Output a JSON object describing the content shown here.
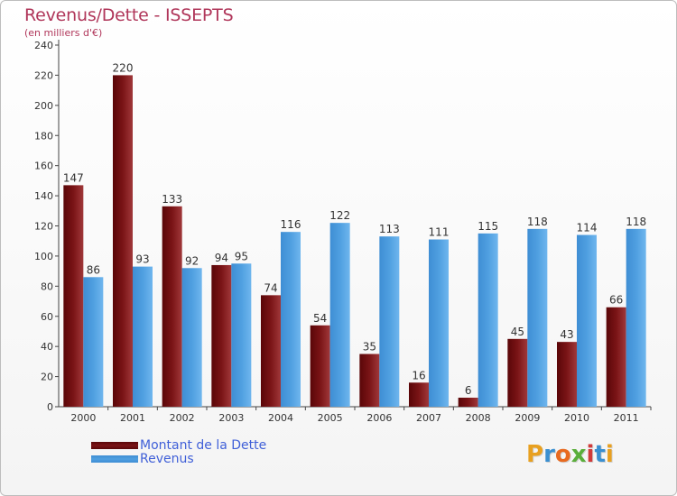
{
  "chart_data": {
    "type": "bar",
    "title": "Revenus/Dette - ISSEPTS",
    "subtitle": "(en milliers d'€)",
    "categories": [
      "2000",
      "2001",
      "2002",
      "2003",
      "2004",
      "2005",
      "2006",
      "2007",
      "2008",
      "2009",
      "2010",
      "2011"
    ],
    "series": [
      {
        "name": "Montant de la Dette",
        "color": "#7a1416",
        "values": [
          147,
          220,
          133,
          94,
          74,
          54,
          35,
          16,
          6,
          45,
          43,
          66
        ]
      },
      {
        "name": "Revenus",
        "color": "#4f9fe0",
        "values": [
          86,
          93,
          92,
          95,
          116,
          122,
          113,
          111,
          115,
          118,
          114,
          118
        ]
      }
    ],
    "ylim": [
      0,
      240
    ],
    "yticks": [
      0,
      20,
      40,
      60,
      80,
      100,
      120,
      140,
      160,
      180,
      200,
      220,
      240
    ],
    "grid": false,
    "legend_position": "bottom-left"
  },
  "logo": {
    "text": "Proxiti",
    "letters": [
      "P",
      "r",
      "o",
      "x",
      "i",
      "t",
      "i"
    ],
    "colors": [
      "#e8a020",
      "#3a8fd0",
      "#e86a20",
      "#5aae3a",
      "#d03a3a",
      "#3a8fd0",
      "#e8a020"
    ]
  }
}
